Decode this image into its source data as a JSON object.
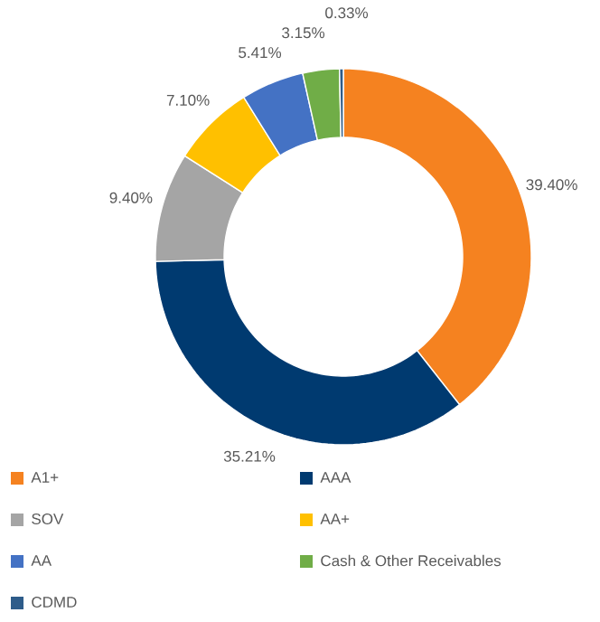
{
  "chart_data": {
    "type": "donut",
    "categories": [
      "A1+",
      "AAA",
      "SOV",
      "AA+",
      "AA",
      "Cash & Other Receivables",
      "CDMD"
    ],
    "values": [
      39.4,
      35.21,
      9.4,
      7.1,
      5.41,
      3.15,
      0.33
    ],
    "value_labels": [
      "39.40%",
      "35.21%",
      "9.40%",
      "7.10%",
      "5.41%",
      "3.15%",
      "0.33%"
    ],
    "colors": [
      "#f58220",
      "#003a70",
      "#a5a5a5",
      "#ffc000",
      "#4472c4",
      "#70ad47",
      "#2e5c8a"
    ],
    "legend": "bottom"
  }
}
